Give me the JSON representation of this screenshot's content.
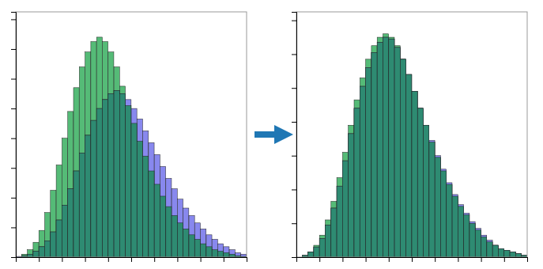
{
  "chart_data": [
    {
      "type": "histogram",
      "bins": [
        0,
        0.025,
        0.05,
        0.075,
        0.1,
        0.125,
        0.15,
        0.175,
        0.2,
        0.225,
        0.25,
        0.275,
        0.3,
        0.325,
        0.35,
        0.375,
        0.4,
        0.425,
        0.45,
        0.475,
        0.5,
        0.525,
        0.55,
        0.575,
        0.6,
        0.625,
        0.65,
        0.675,
        0.7,
        0.725,
        0.75,
        0.775,
        0.8,
        0.825,
        0.85,
        0.875,
        0.9,
        0.925,
        0.95,
        0.975,
        1
      ],
      "series": [
        {
          "color": "#55bb77",
          "values": [
            0.0,
            0.2,
            0.5,
            1.0,
            1.8,
            3.0,
            4.5,
            6.2,
            8.0,
            9.8,
            11.4,
            12.8,
            13.8,
            14.5,
            14.8,
            14.5,
            13.8,
            12.8,
            11.5,
            10.2,
            9.0,
            7.8,
            6.8,
            5.8,
            4.9,
            4.1,
            3.4,
            2.8,
            2.3,
            1.9,
            1.5,
            1.2,
            0.9,
            0.7,
            0.5,
            0.4,
            0.3,
            0.2,
            0.1,
            0.05
          ]
        },
        {
          "color": "#8888ee",
          "values": [
            0.05,
            0.1,
            0.2,
            0.4,
            0.7,
            1.1,
            1.7,
            2.5,
            3.5,
            4.6,
            5.8,
            7.0,
            8.2,
            9.2,
            10.0,
            10.6,
            11.0,
            11.2,
            11.0,
            10.6,
            10.0,
            9.3,
            8.5,
            7.7,
            6.9,
            6.1,
            5.3,
            4.6,
            3.9,
            3.3,
            2.8,
            2.3,
            1.9,
            1.5,
            1.2,
            0.9,
            0.7,
            0.5,
            0.3,
            0.2
          ]
        },
        {
          "color": "#2e8b72",
          "values": [
            0.0,
            0.1,
            0.2,
            0.4,
            0.7,
            1.1,
            1.7,
            2.5,
            3.5,
            4.6,
            5.8,
            7.0,
            8.2,
            9.2,
            10.0,
            10.6,
            11.0,
            11.2,
            11.0,
            10.2,
            9.0,
            7.8,
            6.8,
            5.8,
            4.9,
            4.1,
            3.4,
            2.8,
            2.3,
            1.9,
            1.5,
            1.2,
            0.9,
            0.7,
            0.5,
            0.4,
            0.3,
            0.2,
            0.1,
            0.05
          ]
        }
      ],
      "xlim": [
        0,
        1
      ],
      "xticks": [
        0,
        0.1,
        0.2,
        0.3,
        0.4,
        0.5,
        0.6,
        0.7,
        0.8,
        0.9,
        1
      ],
      "ylim": [
        0,
        16.5
      ],
      "yticks": [
        0,
        2,
        4,
        6,
        8,
        10,
        12,
        14,
        16
      ],
      "tick_labels": false,
      "grid": false
    },
    {
      "type": "histogram",
      "bins": [
        0,
        0.025,
        0.05,
        0.075,
        0.1,
        0.125,
        0.15,
        0.175,
        0.2,
        0.225,
        0.25,
        0.275,
        0.3,
        0.325,
        0.35,
        0.375,
        0.4,
        0.425,
        0.45,
        0.475,
        0.5,
        0.525,
        0.55,
        0.575,
        0.6,
        0.625,
        0.65,
        0.675,
        0.7,
        0.725,
        0.75,
        0.775,
        0.8,
        0.825,
        0.85,
        0.875,
        0.9,
        0.925,
        0.95,
        0.975,
        1
      ],
      "series": [
        {
          "color": "#55bb77",
          "values": [
            0.0,
            0.1,
            0.3,
            0.7,
            1.3,
            2.2,
            3.3,
            4.7,
            6.2,
            7.8,
            9.3,
            10.6,
            11.7,
            12.5,
            13.0,
            13.2,
            13.0,
            12.5,
            11.7,
            10.8,
            9.8,
            8.8,
            7.8,
            6.8,
            5.9,
            5.1,
            4.3,
            3.6,
            3.0,
            2.5,
            2.0,
            1.6,
            1.2,
            0.9,
            0.7,
            0.5,
            0.4,
            0.3,
            0.2,
            0.1
          ]
        },
        {
          "color": "#8888ee",
          "values": [
            0.0,
            0.1,
            0.3,
            0.6,
            1.1,
            1.9,
            2.9,
            4.2,
            5.7,
            7.3,
            8.8,
            10.1,
            11.2,
            12.1,
            12.7,
            13.0,
            12.9,
            12.4,
            11.7,
            10.8,
            9.8,
            8.8,
            7.8,
            6.9,
            6.0,
            5.2,
            4.4,
            3.7,
            3.1,
            2.6,
            2.1,
            1.7,
            1.3,
            1.0,
            0.7,
            0.5,
            0.4,
            0.3,
            0.2,
            0.1
          ]
        },
        {
          "color": "#2e8b72",
          "values": [
            0.0,
            0.1,
            0.3,
            0.6,
            1.1,
            1.9,
            2.9,
            4.2,
            5.7,
            7.3,
            8.8,
            10.1,
            11.2,
            12.1,
            12.7,
            13.0,
            12.9,
            12.4,
            11.7,
            10.8,
            9.8,
            8.8,
            7.8,
            6.8,
            5.9,
            5.1,
            4.3,
            3.6,
            3.0,
            2.5,
            2.0,
            1.6,
            1.2,
            0.9,
            0.7,
            0.5,
            0.4,
            0.3,
            0.2,
            0.1
          ]
        }
      ],
      "xlim": [
        0,
        1
      ],
      "xticks": [
        0,
        0.1,
        0.2,
        0.3,
        0.4,
        0.5,
        0.6,
        0.7,
        0.8,
        0.9,
        1
      ],
      "ylim": [
        0,
        14.5
      ],
      "yticks": [
        0,
        2,
        4,
        6,
        8,
        10,
        12,
        14
      ],
      "tick_labels": false,
      "grid": false
    }
  ]
}
